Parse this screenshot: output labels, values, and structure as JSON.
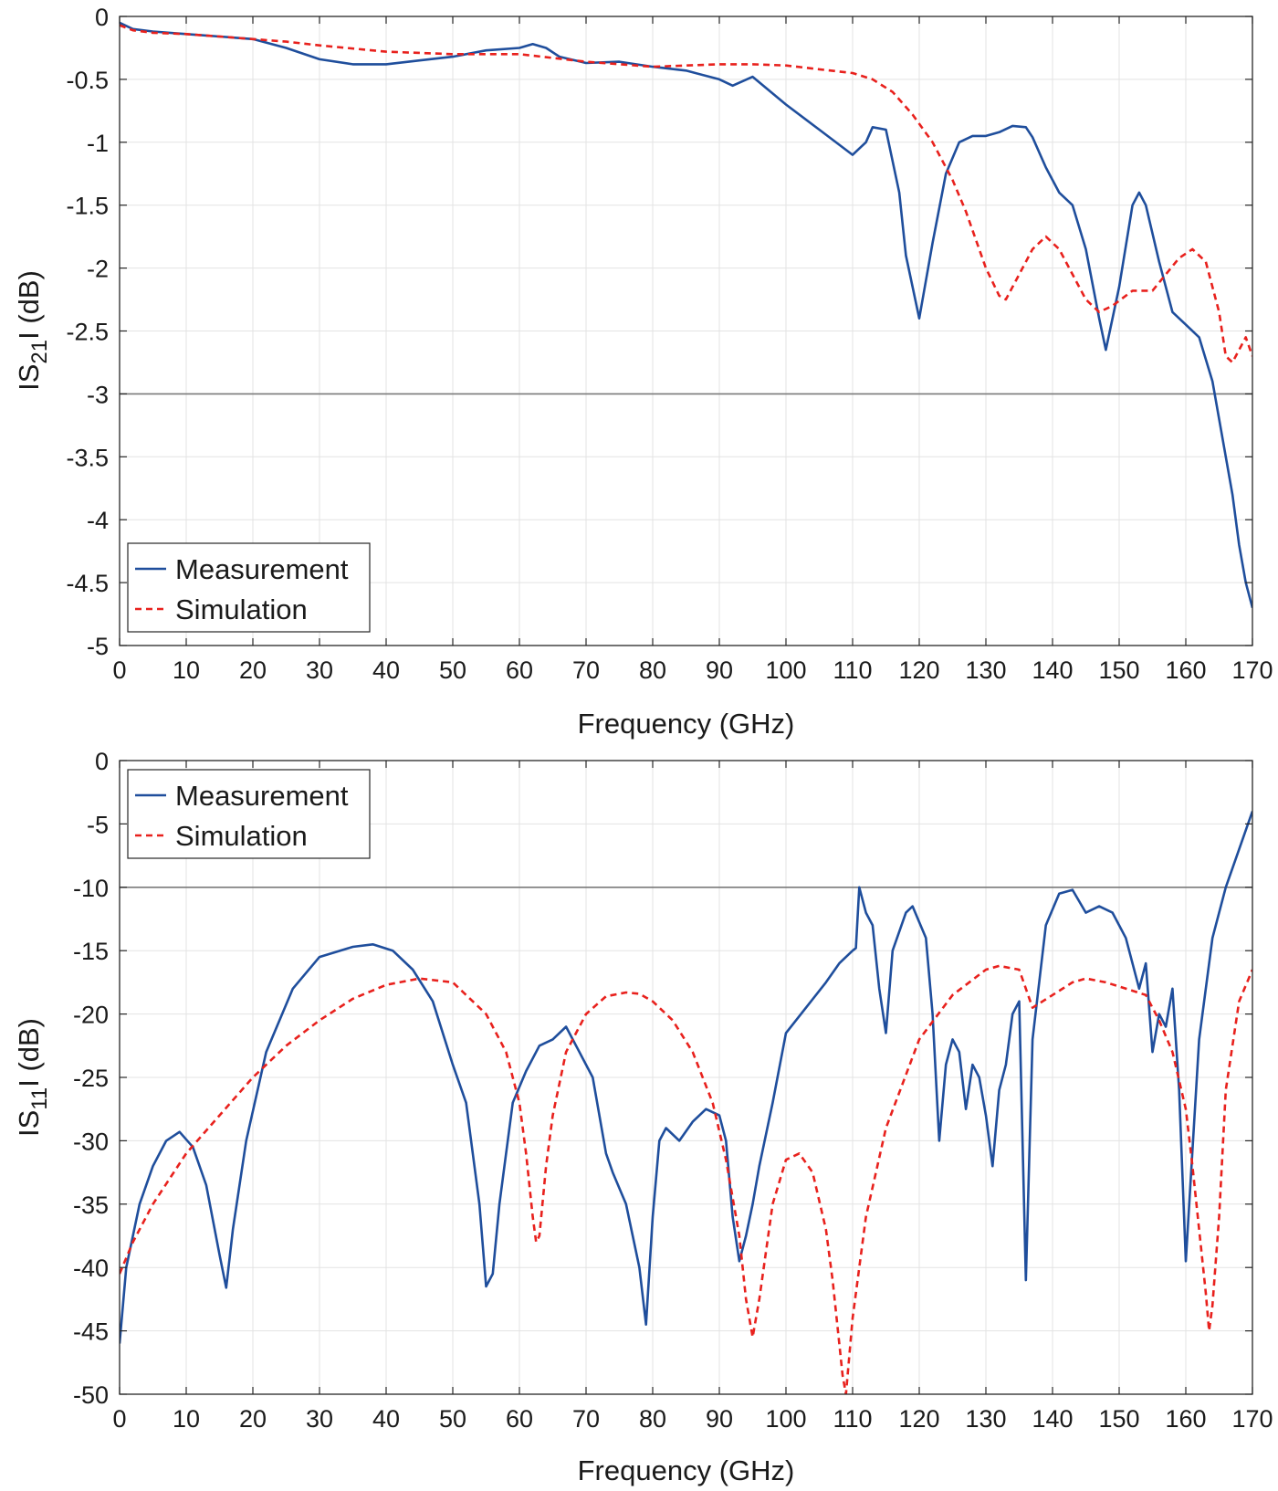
{
  "chart_data": [
    {
      "type": "line",
      "xlabel": "Frequency (GHz)",
      "ylabel_parts": [
        "IS",
        "21",
        "I (dB)"
      ],
      "xlim": [
        0,
        170
      ],
      "ylim": [
        -5,
        0
      ],
      "xticks": [
        0,
        10,
        20,
        30,
        40,
        50,
        60,
        70,
        80,
        90,
        100,
        110,
        120,
        130,
        140,
        150,
        160,
        170
      ],
      "yticks": [
        0,
        -0.5,
        -1,
        -1.5,
        -2,
        -2.5,
        -3,
        -3.5,
        -4,
        -4.5,
        -5
      ],
      "xtick_labels": [
        "0",
        "10",
        "20",
        "30",
        "40",
        "50",
        "60",
        "70",
        "80",
        "90",
        "100",
        "110",
        "120",
        "130",
        "140",
        "150",
        "160",
        "170"
      ],
      "ytick_labels": [
        "0",
        "-0.5",
        "-1",
        "-1.5",
        "-2",
        "-2.5",
        "-3",
        "-3.5",
        "-4",
        "-4.5",
        "-5"
      ],
      "reference_line_y": -3,
      "grid": true,
      "legend_position": "bottom-left",
      "series": [
        {
          "name": "Measurement",
          "color": "#1f4e9c",
          "dash": "solid",
          "x": [
            0,
            2,
            5,
            10,
            15,
            20,
            25,
            30,
            35,
            40,
            45,
            50,
            55,
            60,
            62,
            64,
            66,
            70,
            75,
            80,
            85,
            90,
            92,
            95,
            100,
            105,
            110,
            112,
            113,
            115,
            117,
            118,
            120,
            122,
            124,
            126,
            128,
            130,
            132,
            134,
            136,
            137,
            139,
            141,
            143,
            145,
            147,
            148,
            150,
            152,
            153,
            154,
            156,
            158,
            160,
            162,
            164,
            165,
            167,
            168,
            169,
            170
          ],
          "y": [
            -0.05,
            -0.1,
            -0.12,
            -0.14,
            -0.16,
            -0.18,
            -0.25,
            -0.34,
            -0.38,
            -0.38,
            -0.35,
            -0.32,
            -0.27,
            -0.25,
            -0.22,
            -0.25,
            -0.32,
            -0.37,
            -0.36,
            -0.4,
            -0.43,
            -0.5,
            -0.55,
            -0.48,
            -0.7,
            -0.9,
            -1.1,
            -1.0,
            -0.88,
            -0.9,
            -1.4,
            -1.9,
            -2.4,
            -1.8,
            -1.25,
            -1.0,
            -0.95,
            -0.95,
            -0.92,
            -0.87,
            -0.88,
            -0.96,
            -1.2,
            -1.4,
            -1.5,
            -1.85,
            -2.4,
            -2.65,
            -2.15,
            -1.5,
            -1.4,
            -1.5,
            -1.95,
            -2.35,
            -2.45,
            -2.55,
            -2.9,
            -3.2,
            -3.8,
            -4.2,
            -4.5,
            -4.7
          ]
        },
        {
          "name": "Simulation",
          "color": "#e8211d",
          "dash": "dashed",
          "x": [
            0,
            2,
            5,
            10,
            15,
            20,
            25,
            30,
            40,
            50,
            60,
            70,
            80,
            90,
            95,
            100,
            105,
            110,
            113,
            116,
            119,
            122,
            125,
            127,
            130,
            132,
            133,
            135,
            137,
            139,
            141,
            143,
            145,
            147,
            149,
            152,
            155,
            157,
            159,
            161,
            163,
            165,
            166,
            167,
            169,
            170
          ],
          "y": [
            -0.07,
            -0.11,
            -0.13,
            -0.14,
            -0.16,
            -0.18,
            -0.2,
            -0.23,
            -0.28,
            -0.3,
            -0.3,
            -0.36,
            -0.4,
            -0.38,
            -0.38,
            -0.39,
            -0.42,
            -0.45,
            -0.5,
            -0.6,
            -0.78,
            -1.0,
            -1.3,
            -1.55,
            -2.0,
            -2.22,
            -2.25,
            -2.05,
            -1.85,
            -1.75,
            -1.85,
            -2.05,
            -2.25,
            -2.35,
            -2.3,
            -2.18,
            -2.18,
            -2.05,
            -1.92,
            -1.85,
            -1.95,
            -2.35,
            -2.7,
            -2.75,
            -2.55,
            -2.7
          ]
        }
      ]
    },
    {
      "type": "line",
      "xlabel": "Frequency (GHz)",
      "ylabel_parts": [
        "IS",
        "11",
        "I (dB)"
      ],
      "xlim": [
        0,
        170
      ],
      "ylim": [
        -50,
        0
      ],
      "xticks": [
        0,
        10,
        20,
        30,
        40,
        50,
        60,
        70,
        80,
        90,
        100,
        110,
        120,
        130,
        140,
        150,
        160,
        170
      ],
      "yticks": [
        0,
        -5,
        -10,
        -15,
        -20,
        -25,
        -30,
        -35,
        -40,
        -45,
        -50
      ],
      "xtick_labels": [
        "0",
        "10",
        "20",
        "30",
        "40",
        "50",
        "60",
        "70",
        "80",
        "90",
        "100",
        "110",
        "120",
        "130",
        "140",
        "150",
        "160",
        "170"
      ],
      "ytick_labels": [
        "0",
        "-5",
        "-10",
        "-15",
        "-20",
        "-25",
        "-30",
        "-35",
        "-40",
        "-45",
        "-50"
      ],
      "reference_line_y": -10,
      "grid": true,
      "legend_position": "top-left",
      "series": [
        {
          "name": "Measurement",
          "color": "#1f4e9c",
          "dash": "solid",
          "x": [
            0,
            1,
            3,
            5,
            7,
            9,
            11,
            13,
            15,
            16,
            17,
            19,
            22,
            26,
            30,
            35,
            38,
            41,
            44,
            47,
            50,
            52,
            54,
            55,
            56,
            57,
            59,
            61,
            63,
            65,
            67,
            68,
            69,
            70,
            71,
            72,
            73,
            74,
            76,
            78,
            79,
            80,
            81,
            82,
            84,
            86,
            88,
            90,
            91,
            92,
            93,
            94,
            95,
            96,
            98,
            100,
            103,
            106,
            108,
            110,
            110.5,
            111,
            112,
            113,
            114,
            115,
            116,
            118,
            119,
            121,
            122,
            123,
            124,
            125,
            126,
            127,
            128,
            129,
            130,
            131,
            132,
            133,
            134,
            135,
            136,
            137,
            139,
            141,
            143,
            145,
            147,
            149,
            151,
            153,
            154,
            155,
            156,
            157,
            158,
            159,
            160,
            162,
            164,
            166,
            168,
            170
          ],
          "y": [
            -46,
            -40,
            -35,
            -32,
            -30,
            -29.3,
            -30.5,
            -33.5,
            -39,
            -41.6,
            -37,
            -30,
            -23,
            -18,
            -15.5,
            -14.7,
            -14.5,
            -15,
            -16.5,
            -19,
            -24,
            -27,
            -35,
            -41.5,
            -40.5,
            -35,
            -27,
            -24.5,
            -22.5,
            -22,
            -21,
            -22,
            -23,
            -24,
            -25,
            -28,
            -31,
            -32.5,
            -35,
            -40,
            -44.5,
            -36,
            -30,
            -29,
            -30,
            -28.5,
            -27.5,
            -28,
            -30,
            -36,
            -39.5,
            -37.5,
            -35,
            -32,
            -27,
            -21.5,
            -19.5,
            -17.5,
            -16,
            -15,
            -14.8,
            -10,
            -12,
            -13,
            -18,
            -21.5,
            -15,
            -12,
            -11.5,
            -14,
            -20,
            -30,
            -24,
            -22,
            -23,
            -27.5,
            -24,
            -25,
            -28,
            -32,
            -26,
            -24,
            -20,
            -19,
            -41,
            -22,
            -13,
            -10.5,
            -10.2,
            -12,
            -11.5,
            -12,
            -14,
            -18,
            -16,
            -23,
            -20,
            -21,
            -18,
            -26,
            -39.5,
            -22,
            -14,
            -10,
            -7,
            -4
          ]
        },
        {
          "name": "Simulation",
          "color": "#e8211d",
          "dash": "dashed",
          "x": [
            0,
            2,
            5,
            10,
            15,
            20,
            25,
            30,
            35,
            40,
            45,
            50,
            55,
            58,
            60,
            61,
            62,
            62.5,
            63,
            64,
            65,
            67,
            70,
            73,
            76,
            78,
            80,
            83,
            86,
            89,
            91,
            93,
            94,
            95,
            96,
            98,
            100,
            102,
            104,
            106,
            107,
            108,
            108.5,
            109,
            110,
            112,
            115,
            120,
            125,
            130,
            132,
            135,
            137,
            140,
            143,
            145,
            148,
            151,
            154,
            156,
            158,
            160,
            161,
            162,
            163,
            163.5,
            164,
            165,
            166,
            168,
            170
          ],
          "y": [
            -40.5,
            -38,
            -35,
            -31,
            -28,
            -25,
            -22.5,
            -20.5,
            -18.8,
            -17.7,
            -17.2,
            -17.5,
            -20,
            -23,
            -27,
            -31,
            -36,
            -38,
            -37.5,
            -32,
            -28,
            -23,
            -20,
            -18.6,
            -18.3,
            -18.4,
            -19,
            -20.5,
            -23,
            -27,
            -31.5,
            -37.5,
            -42.5,
            -45.5,
            -42.5,
            -35,
            -31.5,
            -31,
            -32.5,
            -37,
            -41,
            -46,
            -48.5,
            -50,
            -44,
            -36,
            -29,
            -22,
            -18.5,
            -16.5,
            -16.2,
            -16.5,
            -19.5,
            -18.5,
            -17.5,
            -17.2,
            -17.5,
            -18,
            -18.5,
            -20.5,
            -23,
            -27.5,
            -32,
            -37,
            -42,
            -45,
            -43,
            -36,
            -26,
            -19,
            -16.5
          ]
        }
      ]
    }
  ]
}
